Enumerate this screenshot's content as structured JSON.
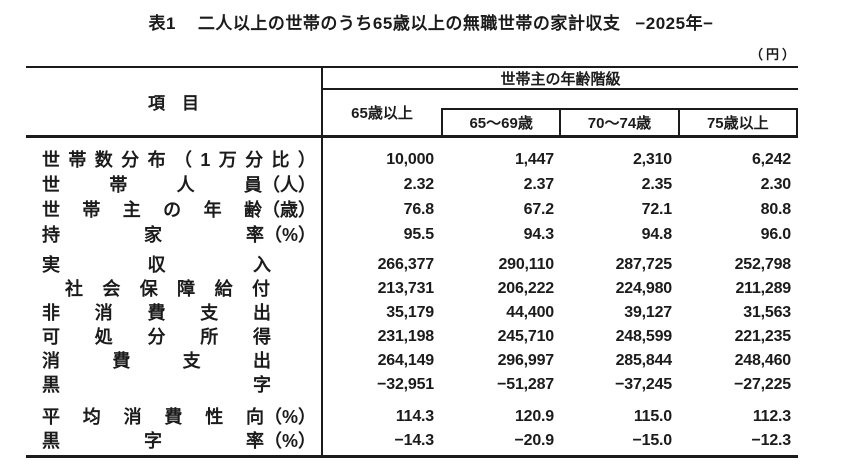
{
  "title": {
    "prefix": "表1",
    "main": "二人以上の世帯のうち65歳以上の無職世帯の家計収支",
    "period": "−2025年−"
  },
  "unit_note": "（円）",
  "table": {
    "corner_label": "項　目",
    "column_group_label": "世帯主の年齢階級",
    "columns": [
      "65歳以上",
      "65～69歳",
      "70～74歳",
      "75歳以上"
    ],
    "groups": [
      {
        "rows": [
          {
            "label": "世帯数分布（1万分比）",
            "label_units": [
              "世",
              "帯",
              "数",
              "分",
              "布",
              "（",
              "1",
              "万",
              "分",
              "比",
              "）"
            ],
            "label_style": "wide",
            "values": [
              "10,000",
              "1,447",
              "2,310",
              "6,242"
            ]
          },
          {
            "label": "世帯人員（人）",
            "label_units": [
              "世",
              "帯",
              "人",
              "員（人）"
            ],
            "label_style": "wide",
            "values": [
              "2.32",
              "2.37",
              "2.35",
              "2.30"
            ]
          },
          {
            "label": "世帯主の年齢（歳）",
            "label_units": [
              "世",
              "帯",
              "主",
              "の",
              "年",
              "齢（歳）"
            ],
            "label_style": "wide",
            "values": [
              "76.8",
              "67.2",
              "72.1",
              "80.8"
            ]
          },
          {
            "label": "持家率（%）",
            "label_units": [
              "持",
              "家",
              "率（%）"
            ],
            "label_style": "wide",
            "values": [
              "95.5",
              "94.3",
              "94.8",
              "96.0"
            ]
          }
        ]
      },
      {
        "rows": [
          {
            "label": "実収入",
            "label_units": [
              "実",
              "収",
              "入"
            ],
            "label_style": "narrow",
            "values": [
              "266,377",
              "290,110",
              "287,725",
              "252,798"
            ]
          },
          {
            "label": "社会保障給付",
            "label_units": [
              "社",
              "会",
              "保",
              "障",
              "給",
              "付"
            ],
            "label_style": "indent",
            "values": [
              "213,731",
              "206,222",
              "224,980",
              "211,289"
            ]
          },
          {
            "label": "非消費支出",
            "label_units": [
              "非",
              "消",
              "費",
              "支",
              "出"
            ],
            "label_style": "narrow",
            "values": [
              "35,179",
              "44,400",
              "39,127",
              "31,563"
            ]
          },
          {
            "label": "可処分所得",
            "label_units": [
              "可",
              "処",
              "分",
              "所",
              "得"
            ],
            "label_style": "narrow",
            "values": [
              "231,198",
              "245,710",
              "248,599",
              "221,235"
            ]
          },
          {
            "label": "消費支出",
            "label_units": [
              "消",
              "費",
              "支",
              "出"
            ],
            "label_style": "narrow",
            "values": [
              "264,149",
              "296,997",
              "285,844",
              "248,460"
            ]
          },
          {
            "label": "黒字",
            "label_units": [
              "黒",
              "字"
            ],
            "label_style": "narrow",
            "values": [
              "−32,951",
              "−51,287",
              "−37,245",
              "−27,225"
            ]
          }
        ]
      },
      {
        "rows": [
          {
            "label": "平均消費性向（%）",
            "label_units": [
              "平",
              "均",
              "消",
              "費",
              "性",
              "向（%）"
            ],
            "label_style": "wide",
            "values": [
              "114.3",
              "120.9",
              "115.0",
              "112.3"
            ]
          },
          {
            "label": "黒字率（%）",
            "label_units": [
              "黒",
              "字",
              "率（%）"
            ],
            "label_style": "wide",
            "values": [
              "−14.3",
              "−20.9",
              "−15.0",
              "−12.3"
            ]
          }
        ]
      }
    ]
  }
}
